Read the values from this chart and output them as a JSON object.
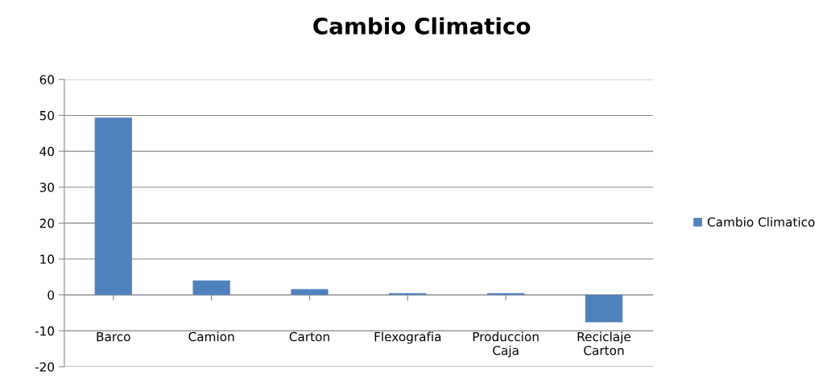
{
  "chart_data": {
    "type": "bar",
    "title": "Cambio Climatico",
    "categories": [
      "Barco",
      "Camion",
      "Carton",
      "Flexografia",
      "Produccion\nCaja",
      "Reciclaje\nCarton"
    ],
    "series": [
      {
        "name": "Cambio Climatico",
        "color": "#4f81bd",
        "values": [
          49.4,
          4.0,
          1.6,
          0.5,
          0.5,
          -7.6
        ]
      }
    ],
    "ylim": [
      -20,
      60
    ],
    "yticks": [
      -20,
      -10,
      0,
      10,
      20,
      30,
      40,
      50,
      60
    ],
    "grid": "y",
    "legend": "right"
  }
}
